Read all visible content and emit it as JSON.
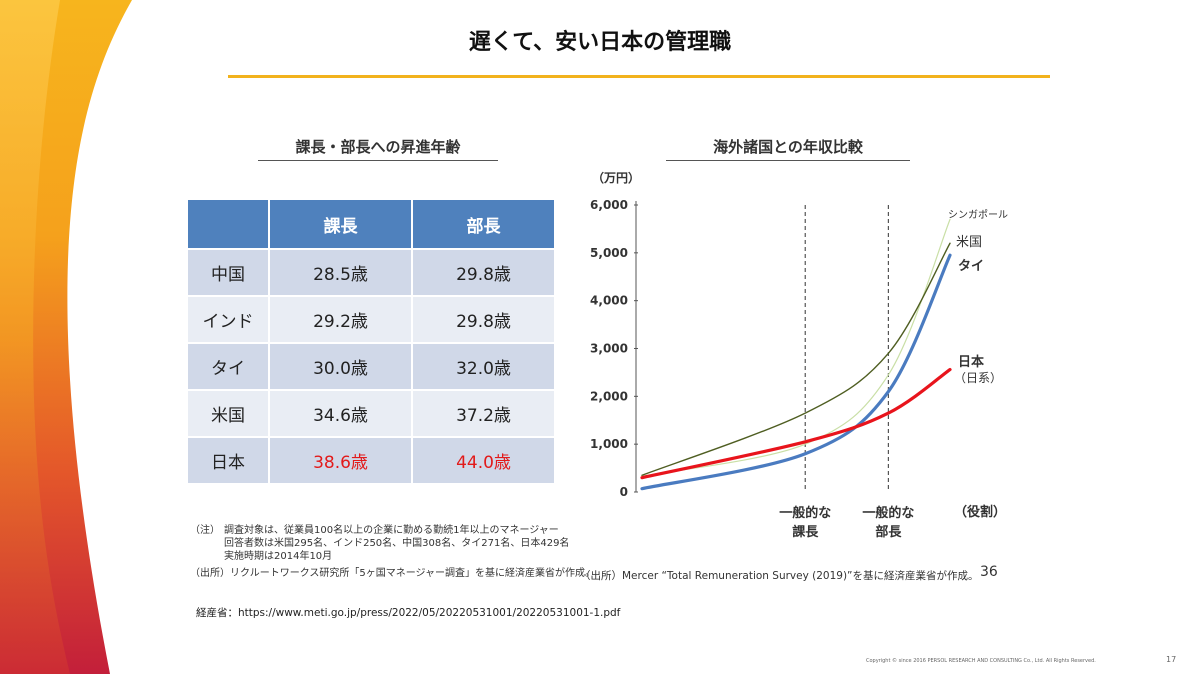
{
  "slide": {
    "title": "遅くて、安い日本の管理職",
    "page_number": "17",
    "copyright": "Copyright © since 2016 PERSOL RESEARCH AND CONSULTING Co., Ltd. All Rights Reserved.",
    "url_label": "経産省：https://www.meti.go.jp/press/2022/05/20220531001/20220531001-1.pdf"
  },
  "left": {
    "subtitle": "課長・部長への昇進年齢",
    "table": {
      "headers": [
        "",
        "課長",
        "部長"
      ],
      "rows": [
        {
          "country": "中国",
          "kacho": "28.5歳",
          "bucho": "29.8歳"
        },
        {
          "country": "インド",
          "kacho": "29.2歳",
          "bucho": "29.8歳"
        },
        {
          "country": "タイ",
          "kacho": "30.0歳",
          "bucho": "32.0歳"
        },
        {
          "country": "米国",
          "kacho": "34.6歳",
          "bucho": "37.2歳"
        },
        {
          "country": "日本",
          "kacho": "38.6歳",
          "bucho": "44.0歳"
        }
      ]
    },
    "note_label": "（注）",
    "note_line1": "調査対象は、従業員100名以上の企業に勤める勤続1年以上のマネージャー",
    "note_line2": "回答者数は米国295名、インド250名、中国308名、タイ271名、日本429名",
    "note_line3": "実施時期は2014年10月",
    "source": "（出所）リクルートワークス研究所「5ヶ国マネージャー調査」を基に経済産業省が作成。"
  },
  "right": {
    "subtitle": "海外諸国との年収比較",
    "source": "（出所）Mercer “Total Remuneration Survey (2019)”を基に経済産業省が作成。",
    "slide_ref": "36"
  },
  "chart_data": {
    "type": "line",
    "unit_label": "（万円）",
    "y_ticks": [
      "6,000",
      "5,000",
      "4,000",
      "3,000",
      "2,000",
      "1,000",
      "0"
    ],
    "ylim": [
      0,
      6000
    ],
    "x_markers": [
      {
        "label_line1": "一般的な",
        "label_line2": "課長",
        "position": 0.53
      },
      {
        "label_line1": "一般的な",
        "label_line2": "部長",
        "position": 0.8
      }
    ],
    "x_axis_label": "（役割）",
    "series": [
      {
        "name": "シンガポール",
        "color": "#c9dfa6",
        "values": [
          [
            0,
            330
          ],
          [
            0.53,
            1000
          ],
          [
            0.8,
            2450
          ],
          [
            1.0,
            5700
          ]
        ]
      },
      {
        "name": "米国",
        "color": "#4f5e22",
        "values": [
          [
            0,
            350
          ],
          [
            0.53,
            1650
          ],
          [
            0.8,
            2900
          ],
          [
            1.0,
            5200
          ]
        ]
      },
      {
        "name": "タイ",
        "color": "#4a7bc0",
        "values": [
          [
            0,
            70
          ],
          [
            0.53,
            800
          ],
          [
            0.8,
            2100
          ],
          [
            1.0,
            4950
          ]
        ]
      },
      {
        "name": "日本",
        "sub": "（日系）",
        "color": "#e8141c",
        "values": [
          [
            0,
            300
          ],
          [
            0.53,
            1050
          ],
          [
            0.8,
            1650
          ],
          [
            1.0,
            2560
          ]
        ]
      }
    ]
  }
}
